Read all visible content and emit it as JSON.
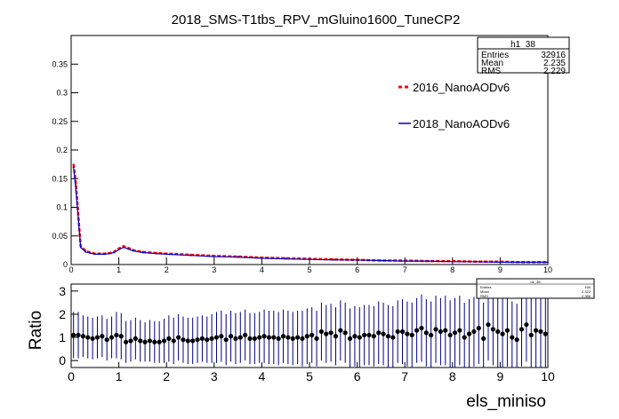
{
  "title": "2018_SMS-T1tbs_RPV_mGluino1600_TuneCP2",
  "stats_box": {
    "name": "h1_38",
    "rows": [
      {
        "label": "Entries",
        "value": "32916"
      },
      {
        "label": "Mean",
        "value": "2.235"
      },
      {
        "label": "RMS",
        "value": "2.229"
      }
    ]
  },
  "stats_box_small": {
    "name": "h1_38",
    "rows": [
      {
        "label": "Entries",
        "value": "159"
      },
      {
        "label": "Mean",
        "value": "2.322"
      },
      {
        "label": "RMS",
        "value": "2.386"
      }
    ]
  },
  "colors": {
    "series_2016": "#ff0000",
    "series_2018": "#0000cc",
    "ratio_points": "#000000",
    "ratio_errors": "#000080"
  },
  "chart_data": [
    {
      "type": "line",
      "xlim": [
        0,
        10
      ],
      "ylim": [
        0,
        0.4
      ],
      "x_ticks": [
        "0",
        "1",
        "2",
        "3",
        "4",
        "5",
        "6",
        "7",
        "8",
        "9",
        "10"
      ],
      "y_ticks": [
        "0",
        "0.05",
        "0.1",
        "0.15",
        "0.2",
        "0.25",
        "0.3",
        "0.35"
      ],
      "legend_placement": "right",
      "x": [
        0.05,
        0.1,
        0.2,
        0.3,
        0.4,
        0.5,
        0.6,
        0.7,
        0.8,
        0.9,
        1.0,
        1.1,
        1.2,
        1.3,
        1.5,
        1.8,
        2.0,
        2.5,
        3.0,
        3.5,
        4.0,
        4.5,
        5.0,
        5.5,
        6.0,
        6.5,
        7.0,
        7.5,
        8.0,
        8.5,
        9.0,
        9.5,
        10.0
      ],
      "series": [
        {
          "name": "2016_NanoAODv6",
          "style": "dashed",
          "values": [
            0.175,
            0.14,
            0.032,
            0.024,
            0.021,
            0.019,
            0.019,
            0.019,
            0.02,
            0.022,
            0.028,
            0.032,
            0.029,
            0.025,
            0.022,
            0.02,
            0.019,
            0.017,
            0.015,
            0.014,
            0.012,
            0.011,
            0.01,
            0.009,
            0.008,
            0.007,
            0.007,
            0.006,
            0.006,
            0.005,
            0.005,
            0.004,
            0.004
          ]
        },
        {
          "name": "2018_NanoAODv6",
          "style": "solid",
          "values": [
            0.17,
            0.13,
            0.03,
            0.022,
            0.02,
            0.018,
            0.018,
            0.018,
            0.019,
            0.021,
            0.026,
            0.03,
            0.027,
            0.024,
            0.021,
            0.019,
            0.018,
            0.016,
            0.014,
            0.013,
            0.011,
            0.01,
            0.009,
            0.008,
            0.008,
            0.007,
            0.006,
            0.006,
            0.005,
            0.005,
            0.004,
            0.004,
            0.004
          ]
        }
      ]
    },
    {
      "type": "scatter",
      "ylabel": "Ratio",
      "xlabel": "els_miniso",
      "xlim": [
        0,
        10
      ],
      "ylim": [
        -0.3,
        3.3
      ],
      "x_ticks": [
        "0",
        "1",
        "2",
        "3",
        "4",
        "5",
        "6",
        "7",
        "8",
        "9",
        "10"
      ],
      "y_ticks": [
        "0",
        "1",
        "2",
        "3"
      ],
      "x": [
        0.05,
        0.15,
        0.25,
        0.35,
        0.45,
        0.55,
        0.65,
        0.75,
        0.85,
        0.95,
        1.05,
        1.15,
        1.25,
        1.35,
        1.45,
        1.55,
        1.65,
        1.75,
        1.85,
        1.95,
        2.05,
        2.15,
        2.25,
        2.35,
        2.45,
        2.55,
        2.65,
        2.75,
        2.85,
        2.95,
        3.05,
        3.15,
        3.25,
        3.35,
        3.45,
        3.55,
        3.65,
        3.75,
        3.85,
        3.95,
        4.05,
        4.15,
        4.25,
        4.35,
        4.45,
        4.55,
        4.65,
        4.75,
        4.85,
        4.95,
        5.05,
        5.15,
        5.25,
        5.35,
        5.45,
        5.55,
        5.65,
        5.75,
        5.85,
        5.95,
        6.05,
        6.15,
        6.25,
        6.35,
        6.45,
        6.55,
        6.65,
        6.75,
        6.85,
        6.95,
        7.05,
        7.15,
        7.25,
        7.35,
        7.45,
        7.55,
        7.65,
        7.75,
        7.85,
        7.95,
        8.05,
        8.15,
        8.25,
        8.35,
        8.45,
        8.55,
        8.65,
        8.75,
        8.85,
        8.95,
        9.05,
        9.15,
        9.25,
        9.35,
        9.45,
        9.55,
        9.65,
        9.75,
        9.85,
        9.95
      ],
      "values": [
        1.1,
        1.1,
        1.05,
        1.0,
        0.95,
        1.0,
        1.05,
        0.9,
        1.0,
        1.1,
        1.05,
        0.8,
        0.85,
        0.95,
        0.85,
        0.8,
        0.85,
        0.8,
        0.8,
        0.85,
        0.95,
        0.85,
        1.0,
        0.9,
        0.85,
        0.85,
        0.9,
        0.95,
        0.9,
        0.95,
        1.0,
        1.05,
        0.9,
        1.05,
        0.95,
        1.0,
        1.1,
        0.95,
        0.95,
        1.0,
        1.05,
        1.0,
        1.0,
        0.95,
        1.05,
        1.0,
        0.95,
        1.0,
        0.95,
        1.05,
        1.1,
        0.95,
        1.25,
        1.15,
        1.2,
        1.05,
        1.3,
        1.2,
        0.95,
        1.05,
        1.0,
        1.1,
        1.1,
        1.05,
        1.2,
        1.15,
        1.05,
        1.0,
        1.25,
        1.25,
        1.15,
        1.1,
        1.3,
        1.4,
        1.2,
        1.1,
        1.35,
        1.25,
        1.3,
        1.1,
        1.2,
        1.3,
        1.0,
        1.15,
        1.25,
        1.4,
        0.95,
        1.55,
        1.35,
        1.25,
        1.15,
        1.3,
        1.0,
        0.9,
        1.35,
        1.55,
        1.1,
        1.3,
        1.25,
        1.15
      ],
      "errors": [
        1.0,
        1.0,
        0.9,
        0.9,
        0.9,
        0.9,
        0.9,
        0.9,
        0.9,
        1.0,
        1.0,
        0.9,
        0.9,
        0.9,
        0.9,
        0.85,
        0.9,
        0.9,
        0.9,
        0.95,
        1.0,
        1.0,
        1.0,
        1.0,
        1.0,
        1.0,
        1.0,
        1.0,
        1.0,
        1.05,
        1.1,
        1.1,
        1.1,
        1.1,
        1.1,
        1.1,
        1.1,
        1.1,
        1.1,
        1.1,
        1.15,
        1.15,
        1.15,
        1.15,
        1.15,
        1.15,
        1.15,
        1.15,
        1.2,
        1.2,
        1.2,
        1.2,
        1.25,
        1.25,
        1.25,
        1.25,
        1.3,
        1.3,
        1.3,
        1.3,
        1.3,
        1.3,
        1.3,
        1.3,
        1.35,
        1.35,
        1.35,
        1.35,
        1.35,
        1.4,
        1.4,
        1.4,
        1.4,
        1.45,
        1.45,
        1.45,
        1.45,
        1.45,
        1.5,
        1.5,
        1.5,
        1.5,
        1.5,
        1.5,
        1.5,
        1.55,
        1.55,
        1.55,
        1.55,
        1.55,
        1.55,
        1.55,
        1.55,
        1.55,
        1.6,
        1.6,
        1.6,
        1.6,
        1.6,
        1.6
      ]
    }
  ]
}
